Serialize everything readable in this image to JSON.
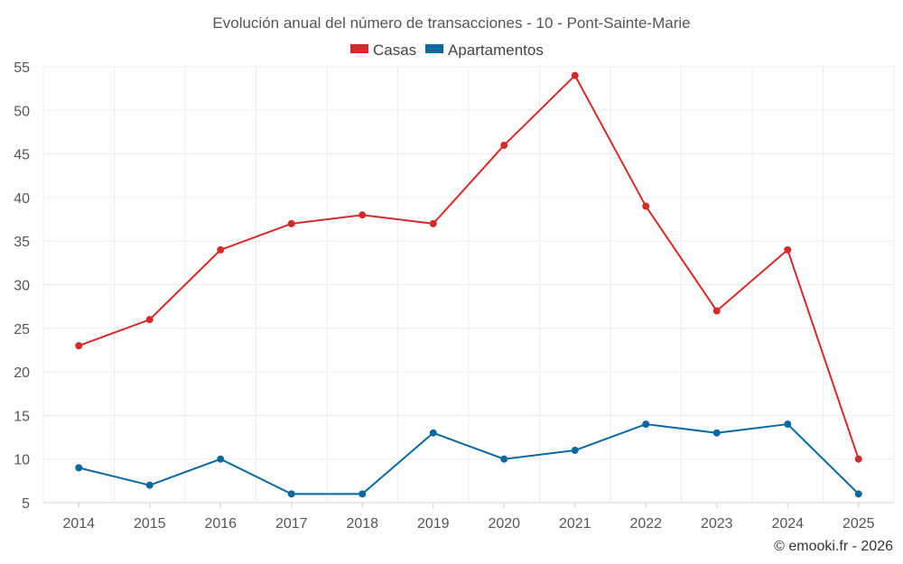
{
  "chart_data": {
    "type": "line",
    "title": "Evolución anual del número de transacciones - 10 - Pont-Sainte-Marie",
    "categories": [
      "2014",
      "2015",
      "2016",
      "2017",
      "2018",
      "2019",
      "2020",
      "2021",
      "2022",
      "2023",
      "2024",
      "2025"
    ],
    "series": [
      {
        "name": "Casas",
        "color": "#d32a2a",
        "values": [
          23,
          26,
          34,
          37,
          38,
          37,
          46,
          54,
          39,
          27,
          34,
          10
        ]
      },
      {
        "name": "Apartamentos",
        "color": "#0868a0",
        "values": [
          9,
          7,
          10,
          6,
          6,
          13,
          10,
          11,
          14,
          13,
          14,
          6
        ]
      }
    ],
    "ylim": [
      5,
      55
    ],
    "yticks": [
      5,
      10,
      15,
      20,
      25,
      30,
      35,
      40,
      45,
      50,
      55
    ],
    "xlabel": "",
    "ylabel": "",
    "grid": true,
    "legend": "top-center"
  },
  "credit": "© emooki.fr - 2026"
}
